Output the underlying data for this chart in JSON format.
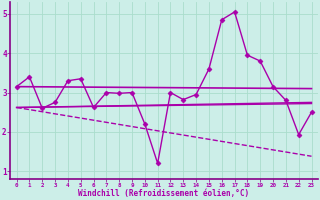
{
  "xlabel": "Windchill (Refroidissement éolien,°C)",
  "background_color": "#cceee8",
  "grid_color": "#aaddcc",
  "line_color": "#aa00aa",
  "border_color": "#880088",
  "xlim": [
    -0.5,
    23.5
  ],
  "ylim": [
    0.8,
    5.3
  ],
  "yticks": [
    1,
    2,
    3,
    4,
    5
  ],
  "xticks": [
    0,
    1,
    2,
    3,
    4,
    5,
    6,
    7,
    8,
    9,
    10,
    11,
    12,
    13,
    14,
    15,
    16,
    17,
    18,
    19,
    20,
    21,
    22,
    23
  ],
  "series": [
    {
      "x": [
        0,
        1,
        2,
        3,
        4,
        5,
        6,
        7,
        8,
        9,
        10,
        11,
        12,
        13,
        14,
        15,
        16,
        17,
        18,
        19,
        20,
        21,
        22,
        23
      ],
      "y": [
        3.15,
        3.4,
        2.6,
        2.75,
        3.3,
        3.35,
        2.62,
        3.0,
        2.98,
        3.0,
        2.2,
        1.2,
        3.0,
        2.82,
        2.95,
        3.6,
        4.85,
        5.05,
        3.95,
        3.8,
        3.15,
        2.8,
        1.93,
        2.5
      ],
      "marker": "D",
      "markersize": 2.5,
      "linewidth": 1.0,
      "linestyle": "-",
      "zorder": 4
    },
    {
      "x": [
        0,
        23
      ],
      "y": [
        3.15,
        3.1
      ],
      "marker": null,
      "linewidth": 1.2,
      "linestyle": "-",
      "zorder": 3
    },
    {
      "x": [
        0,
        23
      ],
      "y": [
        2.62,
        2.75
      ],
      "marker": null,
      "linewidth": 1.0,
      "linestyle": "-",
      "zorder": 3
    },
    {
      "x": [
        0,
        23
      ],
      "y": [
        2.62,
        2.72
      ],
      "marker": null,
      "linewidth": 1.0,
      "linestyle": "-",
      "zorder": 3
    },
    {
      "x": [
        0,
        23
      ],
      "y": [
        2.62,
        1.38
      ],
      "marker": null,
      "linewidth": 1.0,
      "linestyle": "--",
      "zorder": 2
    }
  ]
}
